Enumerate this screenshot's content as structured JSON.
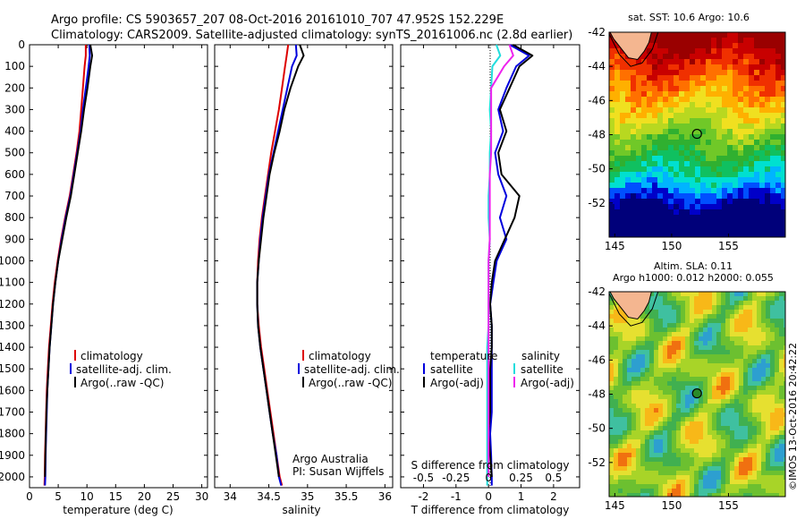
{
  "header": {
    "line1": "Argo profile: CS 5903657_207 08-Oct-2016 20161010_707 47.952S 152.229E",
    "line2": "Climatology: CARS2009. Satellite-adjusted climatology: synTS_20161006.nc (2.8d earlier)"
  },
  "colors": {
    "climatology": "#dd0000",
    "satellite": "#0000dd",
    "argo": "#000000",
    "sat_salinity": "#22dddd",
    "argo_salinity": "#ee22ee",
    "land": "#f4b690",
    "marker": "#000000"
  },
  "legend": {
    "climatology": "climatology",
    "satellite_adj": "satellite-adj. clim.",
    "argo_raw": "Argo(..raw -QC)",
    "diff_temperature": "temperature",
    "diff_salinity": "salinity",
    "diff_satellite": "satellite",
    "diff_argo": "Argo(-adj)"
  },
  "annotations": {
    "argo_australia": "Argo Australia",
    "pi": "PI: Susan Wijffels",
    "sst_title": "sat. SST: 10.6 Argo: 10.6",
    "sla_title1": "Altim. SLA: 0.11",
    "sla_title2": "Argo h1000: 0.012 h2000: 0.055",
    "imos_stamp": "©IMOS 13-Oct-2016 20:42:22"
  },
  "chart_data": [
    {
      "type": "line",
      "panel": "temperature",
      "xlabel": "temperature (deg C)",
      "xlim": [
        0,
        31
      ],
      "xticks": [
        "0",
        "5",
        "10",
        "15",
        "20",
        "25",
        "30"
      ],
      "ylim": [
        0,
        2050
      ],
      "yticks": [
        "0",
        "100",
        "200",
        "300",
        "400",
        "500",
        "600",
        "700",
        "800",
        "900",
        "1000",
        "1100",
        "1200",
        "1300",
        "1400",
        "1500",
        "1600",
        "1700",
        "1800",
        "1900",
        "2000"
      ],
      "series": [
        {
          "name": "climatology",
          "points": [
            [
              9.8,
              0
            ],
            [
              9.8,
              50
            ],
            [
              9.6,
              100
            ],
            [
              9.3,
              200
            ],
            [
              9.0,
              300
            ],
            [
              8.7,
              400
            ],
            [
              8.2,
              500
            ],
            [
              7.6,
              600
            ],
            [
              7.0,
              700
            ],
            [
              6.2,
              800
            ],
            [
              5.5,
              900
            ],
            [
              4.9,
              1000
            ],
            [
              4.4,
              1100
            ],
            [
              4.0,
              1200
            ],
            [
              3.7,
              1300
            ],
            [
              3.4,
              1400
            ],
            [
              3.2,
              1500
            ],
            [
              3.0,
              1600
            ],
            [
              2.9,
              1700
            ],
            [
              2.8,
              1800
            ],
            [
              2.7,
              1900
            ],
            [
              2.65,
              2000
            ],
            [
              2.6,
              2040
            ]
          ]
        },
        {
          "name": "satellite-adj. clim.",
          "points": [
            [
              10.4,
              0
            ],
            [
              10.5,
              50
            ],
            [
              10.3,
              100
            ],
            [
              9.8,
              200
            ],
            [
              9.3,
              300
            ],
            [
              8.9,
              400
            ],
            [
              8.3,
              500
            ],
            [
              7.7,
              600
            ],
            [
              7.1,
              700
            ],
            [
              6.3,
              800
            ],
            [
              5.6,
              900
            ],
            [
              5.0,
              1000
            ],
            [
              4.5,
              1100
            ],
            [
              4.1,
              1200
            ],
            [
              3.8,
              1300
            ],
            [
              3.5,
              1400
            ],
            [
              3.3,
              1500
            ],
            [
              3.1,
              1600
            ],
            [
              3.0,
              1700
            ],
            [
              2.9,
              1800
            ],
            [
              2.8,
              1900
            ],
            [
              2.75,
              2000
            ],
            [
              2.7,
              2040
            ]
          ]
        },
        {
          "name": "Argo(..raw -QC)",
          "points": [
            [
              10.6,
              0
            ],
            [
              10.9,
              50
            ],
            [
              10.6,
              100
            ],
            [
              10.1,
              200
            ],
            [
              9.5,
              300
            ],
            [
              9.0,
              400
            ],
            [
              8.4,
              500
            ],
            [
              7.8,
              600
            ],
            [
              7.2,
              700
            ],
            [
              6.4,
              800
            ],
            [
              5.7,
              900
            ],
            [
              5.0,
              1000
            ],
            [
              4.5,
              1100
            ],
            [
              4.1,
              1200
            ],
            [
              3.8,
              1300
            ],
            [
              3.5,
              1400
            ],
            [
              3.3,
              1500
            ],
            [
              3.1,
              1600
            ],
            [
              2.95,
              1700
            ],
            [
              2.85,
              1800
            ],
            [
              2.75,
              1900
            ],
            [
              2.7,
              2000
            ]
          ]
        }
      ]
    },
    {
      "type": "line",
      "panel": "salinity",
      "xlabel": "salinity",
      "xlim": [
        33.8,
        36.1
      ],
      "xticks": [
        "34",
        "34.5",
        "35",
        "35.5",
        "36"
      ],
      "ylim": [
        0,
        2050
      ],
      "series": [
        {
          "name": "climatology",
          "points": [
            [
              34.75,
              0
            ],
            [
              34.73,
              50
            ],
            [
              34.71,
              100
            ],
            [
              34.67,
              200
            ],
            [
              34.63,
              300
            ],
            [
              34.58,
              400
            ],
            [
              34.53,
              500
            ],
            [
              34.49,
              600
            ],
            [
              34.45,
              700
            ],
            [
              34.41,
              800
            ],
            [
              34.38,
              900
            ],
            [
              34.36,
              1000
            ],
            [
              34.35,
              1100
            ],
            [
              34.35,
              1200
            ],
            [
              34.37,
              1300
            ],
            [
              34.4,
              1400
            ],
            [
              34.44,
              1500
            ],
            [
              34.48,
              1600
            ],
            [
              34.52,
              1700
            ],
            [
              34.56,
              1800
            ],
            [
              34.6,
              1900
            ],
            [
              34.64,
              2000
            ],
            [
              34.67,
              2040
            ]
          ]
        },
        {
          "name": "satellite-adj. clim.",
          "points": [
            [
              34.85,
              0
            ],
            [
              34.86,
              50
            ],
            [
              34.8,
              100
            ],
            [
              34.74,
              200
            ],
            [
              34.68,
              300
            ],
            [
              34.62,
              400
            ],
            [
              34.56,
              500
            ],
            [
              34.5,
              600
            ],
            [
              34.46,
              700
            ],
            [
              34.42,
              800
            ],
            [
              34.39,
              900
            ],
            [
              34.37,
              1000
            ],
            [
              34.35,
              1100
            ],
            [
              34.35,
              1200
            ],
            [
              34.36,
              1300
            ],
            [
              34.39,
              1400
            ],
            [
              34.43,
              1500
            ],
            [
              34.47,
              1600
            ],
            [
              34.51,
              1700
            ],
            [
              34.55,
              1800
            ],
            [
              34.6,
              1900
            ],
            [
              34.63,
              2000
            ],
            [
              34.66,
              2040
            ]
          ]
        },
        {
          "name": "Argo(..raw -QC)",
          "points": [
            [
              34.9,
              0
            ],
            [
              34.95,
              50
            ],
            [
              34.88,
              100
            ],
            [
              34.78,
              200
            ],
            [
              34.7,
              300
            ],
            [
              34.64,
              400
            ],
            [
              34.57,
              500
            ],
            [
              34.51,
              600
            ],
            [
              34.47,
              700
            ],
            [
              34.43,
              800
            ],
            [
              34.4,
              900
            ],
            [
              34.37,
              1000
            ],
            [
              34.35,
              1100
            ],
            [
              34.35,
              1200
            ],
            [
              34.36,
              1300
            ],
            [
              34.39,
              1400
            ],
            [
              34.43,
              1500
            ],
            [
              34.47,
              1600
            ],
            [
              34.51,
              1700
            ],
            [
              34.55,
              1800
            ],
            [
              34.59,
              1900
            ],
            [
              34.63,
              2000
            ]
          ]
        }
      ]
    },
    {
      "type": "line",
      "panel": "differences",
      "xlabel": "T difference from climatology",
      "xlabel_top": "S difference from climatology",
      "xlim": [
        -2.7,
        2.8
      ],
      "xticks": [
        "-2",
        "-1",
        "0",
        "1",
        "2"
      ],
      "xticks_top": [
        "-0.5",
        "-0.25",
        "0",
        "0.25",
        "0.5"
      ],
      "ylim": [
        0,
        2050
      ],
      "series": [
        {
          "name": "temperature satellite",
          "points": [
            [
              0.65,
              0
            ],
            [
              1.25,
              50
            ],
            [
              0.85,
              100
            ],
            [
              0.55,
              200
            ],
            [
              0.3,
              300
            ],
            [
              0.45,
              400
            ],
            [
              0.2,
              500
            ],
            [
              0.3,
              600
            ],
            [
              0.55,
              700
            ],
            [
              0.35,
              800
            ],
            [
              0.55,
              900
            ],
            [
              0.25,
              1000
            ],
            [
              0.15,
              1100
            ],
            [
              0.05,
              1200
            ],
            [
              0.1,
              1300
            ],
            [
              0.1,
              1400
            ],
            [
              0.1,
              1500
            ],
            [
              0.1,
              1600
            ],
            [
              0.1,
              1700
            ],
            [
              0.05,
              1800
            ],
            [
              0.08,
              1900
            ],
            [
              0.1,
              2000
            ],
            [
              0.1,
              2040
            ]
          ]
        },
        {
          "name": "temperature Argo(-adj)",
          "points": [
            [
              0.75,
              0
            ],
            [
              1.35,
              50
            ],
            [
              0.95,
              100
            ],
            [
              0.65,
              200
            ],
            [
              0.35,
              300
            ],
            [
              0.55,
              400
            ],
            [
              0.3,
              500
            ],
            [
              0.4,
              600
            ],
            [
              0.95,
              700
            ],
            [
              0.8,
              800
            ],
            [
              0.5,
              900
            ],
            [
              0.2,
              1000
            ],
            [
              0.1,
              1100
            ],
            [
              0.05,
              1200
            ],
            [
              0.1,
              1300
            ],
            [
              0.1,
              1400
            ],
            [
              0.05,
              1500
            ],
            [
              0.05,
              1600
            ],
            [
              0.05,
              1700
            ],
            [
              0.0,
              1800
            ],
            [
              0.05,
              1900
            ],
            [
              0.1,
              2000
            ]
          ]
        },
        {
          "name": "salinity satellite",
          "points": [
            [
              0.06,
              0
            ],
            [
              0.09,
              50
            ],
            [
              0.03,
              100
            ],
            [
              0.02,
              200
            ],
            [
              0.01,
              300
            ],
            [
              0.02,
              400
            ],
            [
              0.01,
              500
            ],
            [
              0.01,
              600
            ],
            [
              0.0,
              700
            ],
            [
              0.0,
              800
            ],
            [
              0.01,
              900
            ],
            [
              0.0,
              1000
            ],
            [
              0.0,
              1100
            ],
            [
              0.0,
              1200
            ],
            [
              0.0,
              1300
            ],
            [
              -0.01,
              1400
            ],
            [
              -0.01,
              1500
            ],
            [
              -0.01,
              1600
            ],
            [
              -0.01,
              1700
            ],
            [
              -0.01,
              1800
            ],
            [
              -0.01,
              1900
            ],
            [
              -0.01,
              2000
            ],
            [
              -0.01,
              2040
            ]
          ]
        },
        {
          "name": "salinity Argo(-adj)",
          "points": [
            [
              0.16,
              0
            ],
            [
              0.19,
              50
            ],
            [
              0.12,
              100
            ],
            [
              0.02,
              200
            ],
            [
              0.02,
              300
            ],
            [
              0.02,
              400
            ],
            [
              0.02,
              500
            ],
            [
              0.01,
              600
            ],
            [
              0.01,
              700
            ],
            [
              0.01,
              800
            ],
            [
              0.01,
              900
            ],
            [
              0.0,
              1000
            ],
            [
              0.0,
              1100
            ],
            [
              0.0,
              1200
            ],
            [
              0.0,
              1300
            ],
            [
              0.0,
              1400
            ],
            [
              0.0,
              1500
            ],
            [
              0.0,
              1600
            ],
            [
              0.0,
              1700
            ],
            [
              0.0,
              1800
            ],
            [
              0.0,
              1900
            ],
            [
              0.0,
              2000
            ]
          ]
        }
      ]
    },
    {
      "type": "heatmap",
      "panel": "sst_map",
      "title": "sat. SST: 10.6 Argo: 10.6",
      "xlim": [
        144.5,
        160
      ],
      "ylim": [
        -54,
        -42
      ],
      "xticks": [
        "145",
        "150",
        "155"
      ],
      "yticks": [
        "-42",
        "-44",
        "-46",
        "-48",
        "-50",
        "-52"
      ],
      "marker": {
        "lon": 152.229,
        "lat": -47.952
      }
    },
    {
      "type": "heatmap",
      "panel": "sla_map",
      "title": "Altim. SLA: 0.11",
      "subtitle": "Argo h1000: 0.012 h2000: 0.055",
      "xlim": [
        144.5,
        160
      ],
      "ylim": [
        -54,
        -42
      ],
      "xticks": [
        "145",
        "150",
        "155"
      ],
      "yticks": [
        "-42",
        "-44",
        "-46",
        "-48",
        "-50",
        "-52"
      ],
      "marker": {
        "lon": 152.229,
        "lat": -47.952
      }
    }
  ]
}
